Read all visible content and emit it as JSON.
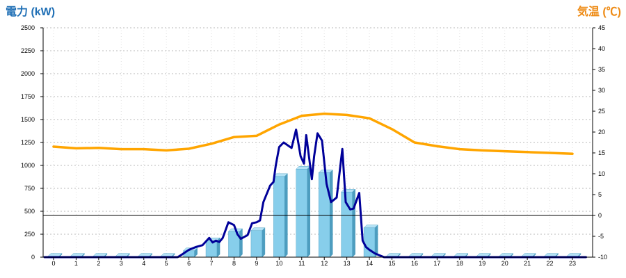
{
  "chart_data": {
    "type": "bar",
    "left_axis": {
      "label": "電力 (kW)",
      "min": 0,
      "max": 2500,
      "ticks": [
        0,
        250,
        500,
        750,
        1000,
        1250,
        1500,
        1750,
        2000,
        2250,
        2500
      ]
    },
    "right_axis": {
      "label": "気温 (℃)",
      "min": -10,
      "max": 45,
      "ticks": [
        -10,
        -5,
        0,
        5,
        10,
        15,
        20,
        25,
        30,
        35,
        40,
        45
      ]
    },
    "categories": [
      "0",
      "1",
      "2",
      "3",
      "4",
      "5",
      "6",
      "7",
      "8",
      "9",
      "10",
      "11",
      "12",
      "13",
      "14",
      "15",
      "16",
      "17",
      "18",
      "19",
      "20",
      "21",
      "22",
      "23"
    ],
    "grid": true,
    "series": [
      {
        "type": "bar",
        "axis": "left",
        "color": "#87ceeb",
        "values": [
          10,
          10,
          10,
          10,
          10,
          10,
          70,
          180,
          280,
          290,
          880,
          960,
          920,
          710,
          320,
          10,
          10,
          10,
          10,
          10,
          10,
          10,
          10,
          10
        ]
      },
      {
        "type": "line",
        "axis": "left",
        "color": "#000099",
        "points": [
          [
            -0.4,
            0
          ],
          [
            5.5,
            0
          ],
          [
            5.7,
            30
          ],
          [
            6.0,
            80
          ],
          [
            6.3,
            110
          ],
          [
            6.6,
            130
          ],
          [
            6.9,
            210
          ],
          [
            7.05,
            160
          ],
          [
            7.2,
            180
          ],
          [
            7.35,
            165
          ],
          [
            7.5,
            210
          ],
          [
            7.75,
            380
          ],
          [
            8.0,
            350
          ],
          [
            8.15,
            250
          ],
          [
            8.3,
            200
          ],
          [
            8.6,
            240
          ],
          [
            8.8,
            370
          ],
          [
            9.0,
            380
          ],
          [
            9.15,
            400
          ],
          [
            9.3,
            600
          ],
          [
            9.6,
            780
          ],
          [
            9.75,
            820
          ],
          [
            9.85,
            1000
          ],
          [
            10.0,
            1200
          ],
          [
            10.2,
            1250
          ],
          [
            10.55,
            1190
          ],
          [
            10.75,
            1390
          ],
          [
            10.95,
            1100
          ],
          [
            11.1,
            1020
          ],
          [
            11.2,
            1330
          ],
          [
            11.45,
            850
          ],
          [
            11.55,
            1100
          ],
          [
            11.7,
            1350
          ],
          [
            11.9,
            1270
          ],
          [
            12.1,
            800
          ],
          [
            12.3,
            600
          ],
          [
            12.55,
            650
          ],
          [
            12.8,
            1180
          ],
          [
            12.95,
            600
          ],
          [
            13.15,
            520
          ],
          [
            13.3,
            530
          ],
          [
            13.55,
            700
          ],
          [
            13.7,
            180
          ],
          [
            13.85,
            110
          ],
          [
            14.0,
            80
          ],
          [
            14.25,
            40
          ],
          [
            14.65,
            0
          ],
          [
            23.6,
            0
          ]
        ]
      },
      {
        "type": "line",
        "axis": "right",
        "color": "#ffa500",
        "values": [
          16.5,
          16.1,
          16.2,
          15.9,
          15.9,
          15.6,
          16.0,
          17.2,
          18.8,
          19.1,
          21.8,
          23.9,
          24.4,
          24.1,
          23.3,
          20.7,
          17.5,
          16.6,
          15.9,
          15.6,
          15.4,
          15.2,
          15.0,
          14.8
        ]
      }
    ]
  }
}
